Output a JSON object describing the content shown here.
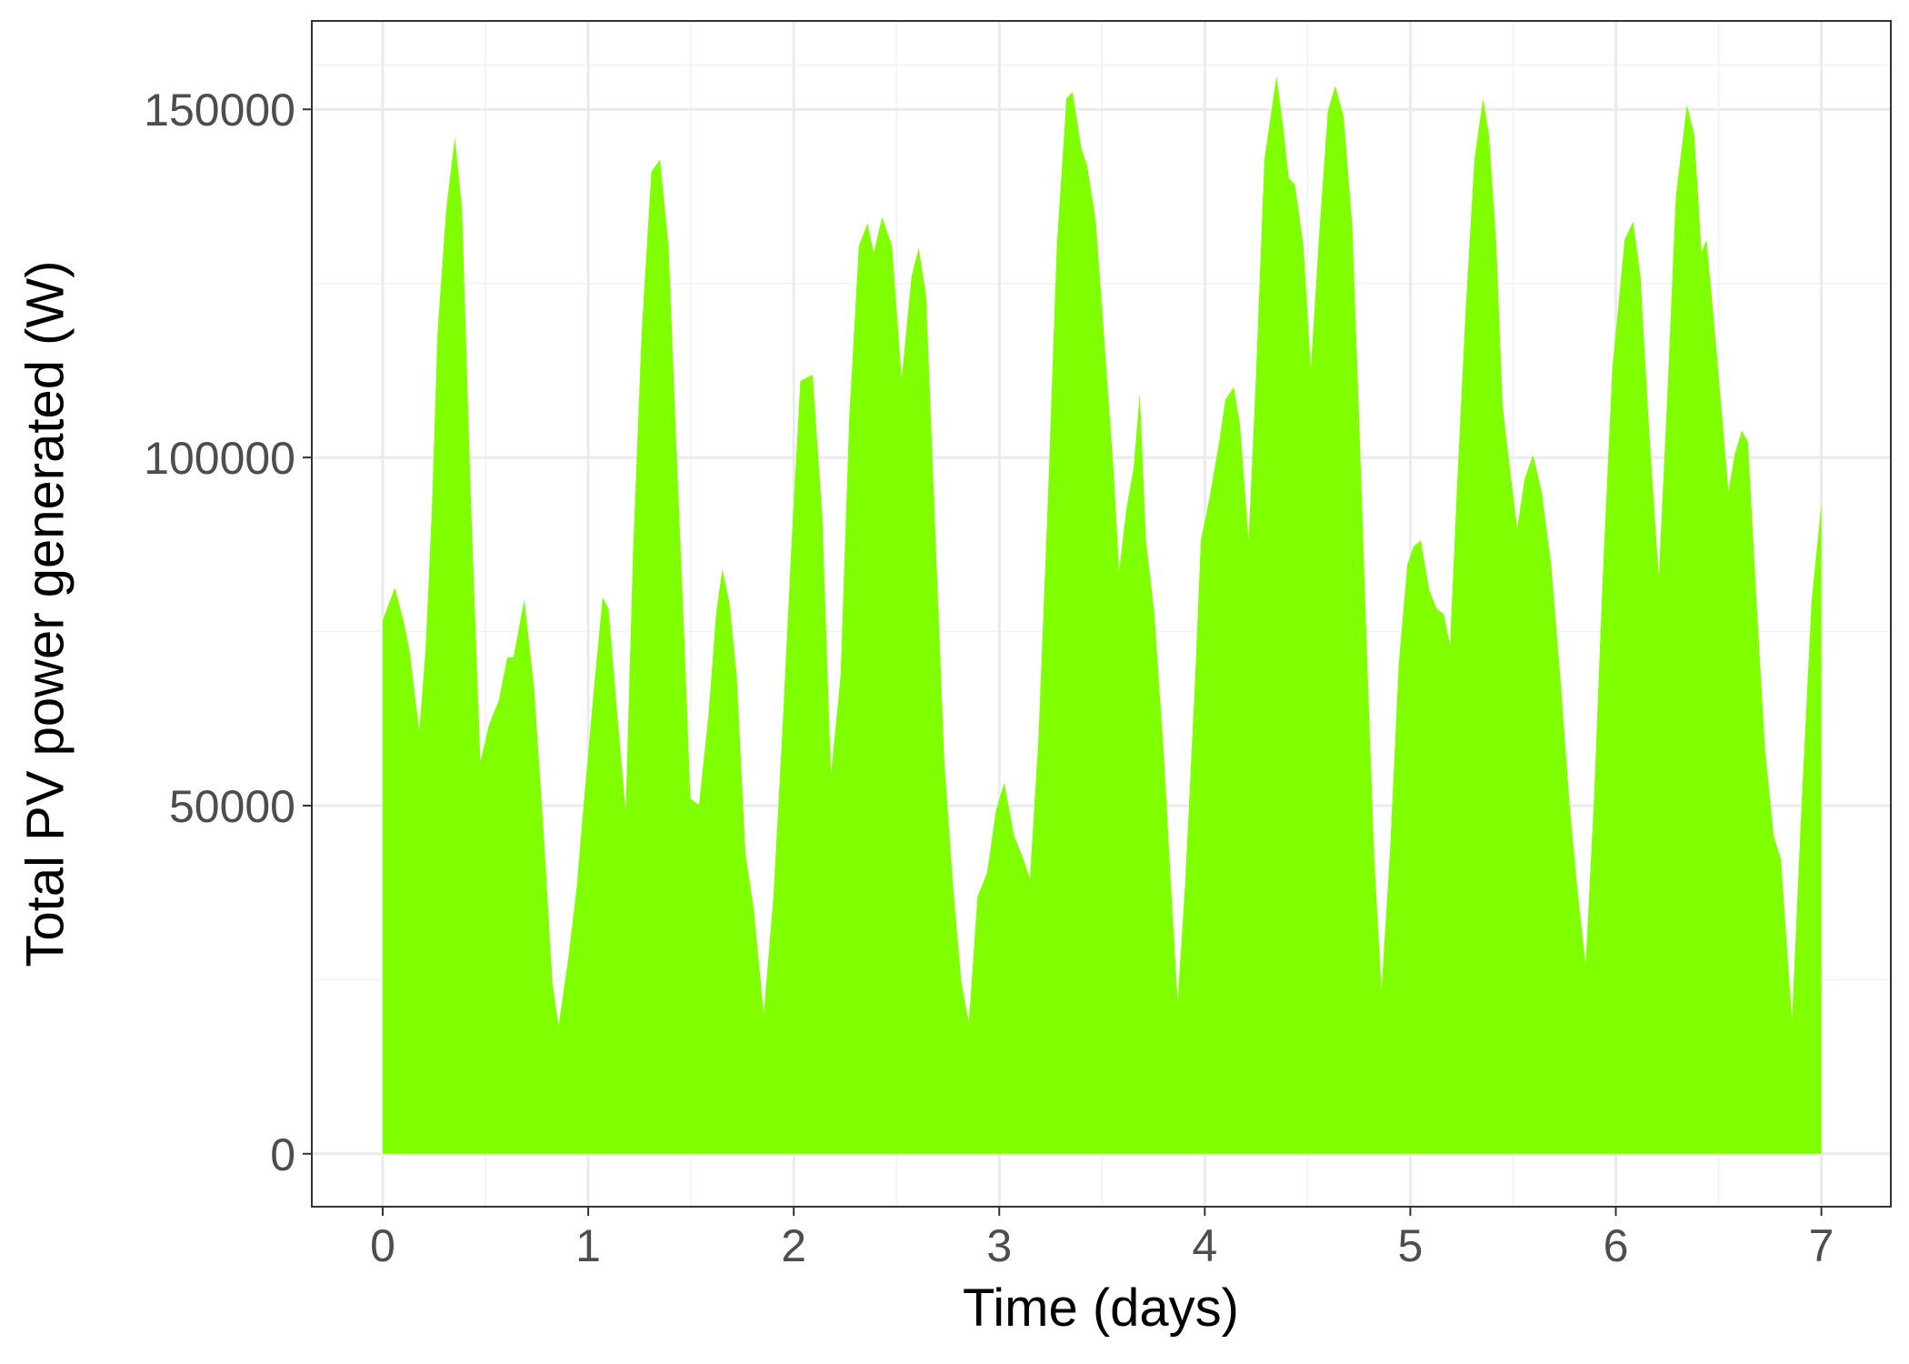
{
  "chart_data": {
    "type": "area",
    "xlabel": "Time (days)",
    "ylabel": "Total PV power generated (W)",
    "color": "#7fff00",
    "grid": true,
    "xlim": [
      -0.345,
      7.338
    ],
    "ylim": [
      -7600,
      162700
    ],
    "xticks": [
      0,
      1,
      2,
      3,
      4,
      5,
      6,
      7
    ],
    "yticks": [
      0,
      50000,
      100000,
      150000
    ],
    "x": [
      0,
      0.059,
      0.101,
      0.131,
      0.178,
      0.208,
      0.238,
      0.267,
      0.309,
      0.351,
      0.386,
      0.428,
      0.475,
      0.517,
      0.565,
      0.606,
      0.636,
      0.689,
      0.737,
      0.784,
      0.826,
      0.856,
      0.903,
      0.945,
      0.98,
      1.028,
      1.07,
      1.099,
      1.141,
      1.182,
      1.218,
      1.26,
      1.307,
      1.349,
      1.391,
      1.426,
      1.468,
      1.497,
      1.539,
      1.586,
      1.622,
      1.652,
      1.687,
      1.723,
      1.765,
      1.806,
      1.854,
      1.901,
      1.943,
      1.99,
      2.032,
      2.092,
      2.139,
      2.181,
      2.228,
      2.27,
      2.317,
      2.359,
      2.389,
      2.43,
      2.478,
      2.525,
      2.573,
      2.608,
      2.644,
      2.686,
      2.733,
      2.775,
      2.816,
      2.852,
      2.894,
      2.941,
      2.983,
      3.024,
      3.072,
      3.119,
      3.149,
      3.191,
      3.238,
      3.28,
      3.327,
      3.357,
      3.399,
      3.428,
      3.47,
      3.517,
      3.559,
      3.583,
      3.618,
      3.654,
      3.684,
      3.714,
      3.755,
      3.803,
      3.832,
      3.868,
      3.904,
      3.951,
      3.981,
      4.023,
      4.07,
      4.1,
      4.141,
      4.171,
      4.213,
      4.248,
      4.29,
      4.349,
      4.379,
      4.409,
      4.439,
      4.48,
      4.516,
      4.557,
      4.599,
      4.635,
      4.676,
      4.718,
      4.753,
      4.795,
      4.825,
      4.86,
      4.902,
      4.944,
      4.985,
      5.015,
      5.051,
      5.092,
      5.128,
      5.163,
      5.193,
      5.229,
      5.27,
      5.312,
      5.354,
      5.383,
      5.419,
      5.449,
      5.484,
      5.52,
      5.556,
      5.597,
      5.639,
      5.686,
      5.734,
      5.775,
      5.817,
      5.853,
      5.894,
      5.936,
      5.983,
      6.043,
      6.084,
      6.12,
      6.162,
      6.209,
      6.251,
      6.292,
      6.346,
      6.382,
      6.417,
      6.441,
      6.477,
      6.518,
      6.548,
      6.578,
      6.613,
      6.643,
      6.685,
      6.726,
      6.768,
      6.804,
      6.857,
      6.905,
      6.952,
      7.0
    ],
    "values": [
      76600,
      81300,
      76600,
      72200,
      60700,
      72200,
      91600,
      118000,
      135700,
      146000,
      135700,
      95100,
      56300,
      61600,
      65100,
      71300,
      71300,
      79600,
      66900,
      45700,
      24500,
      18400,
      28100,
      38600,
      51000,
      66900,
      79900,
      78300,
      63300,
      49200,
      86300,
      118000,
      141000,
      142800,
      130400,
      103900,
      73900,
      51000,
      50100,
      63300,
      77500,
      84000,
      79200,
      68600,
      43100,
      35100,
      20100,
      36900,
      59800,
      88100,
      111000,
      111900,
      91600,
      54500,
      68600,
      105700,
      130400,
      133600,
      129400,
      134500,
      130400,
      111300,
      126000,
      130100,
      123300,
      91600,
      56300,
      38600,
      24500,
      18900,
      36900,
      40400,
      49200,
      53300,
      45700,
      42200,
      39500,
      59800,
      95100,
      130400,
      151600,
      152500,
      144500,
      141900,
      133900,
      114500,
      96900,
      83600,
      92500,
      98600,
      109200,
      88100,
      77500,
      56300,
      40400,
      21900,
      38600,
      66900,
      88100,
      94200,
      102200,
      108300,
      110100,
      104800,
      88100,
      111000,
      142800,
      154800,
      148000,
      140100,
      139200,
      130400,
      112800,
      132200,
      149800,
      153400,
      148900,
      133100,
      103900,
      66900,
      42200,
      23600,
      43900,
      70400,
      84500,
      87200,
      88100,
      81000,
      78300,
      77500,
      73100,
      96900,
      121600,
      142800,
      151600,
      146300,
      130400,
      107500,
      98600,
      89800,
      96900,
      100400,
      95100,
      84500,
      66900,
      50100,
      36900,
      27200,
      51000,
      82800,
      112800,
      131300,
      133900,
      126000,
      103900,
      82800,
      109200,
      137500,
      150700,
      146300,
      129500,
      131300,
      119800,
      105700,
      95100,
      100400,
      103900,
      102200,
      79200,
      58100,
      45700,
      42200,
      19200,
      51000,
      79200,
      93300
    ]
  }
}
